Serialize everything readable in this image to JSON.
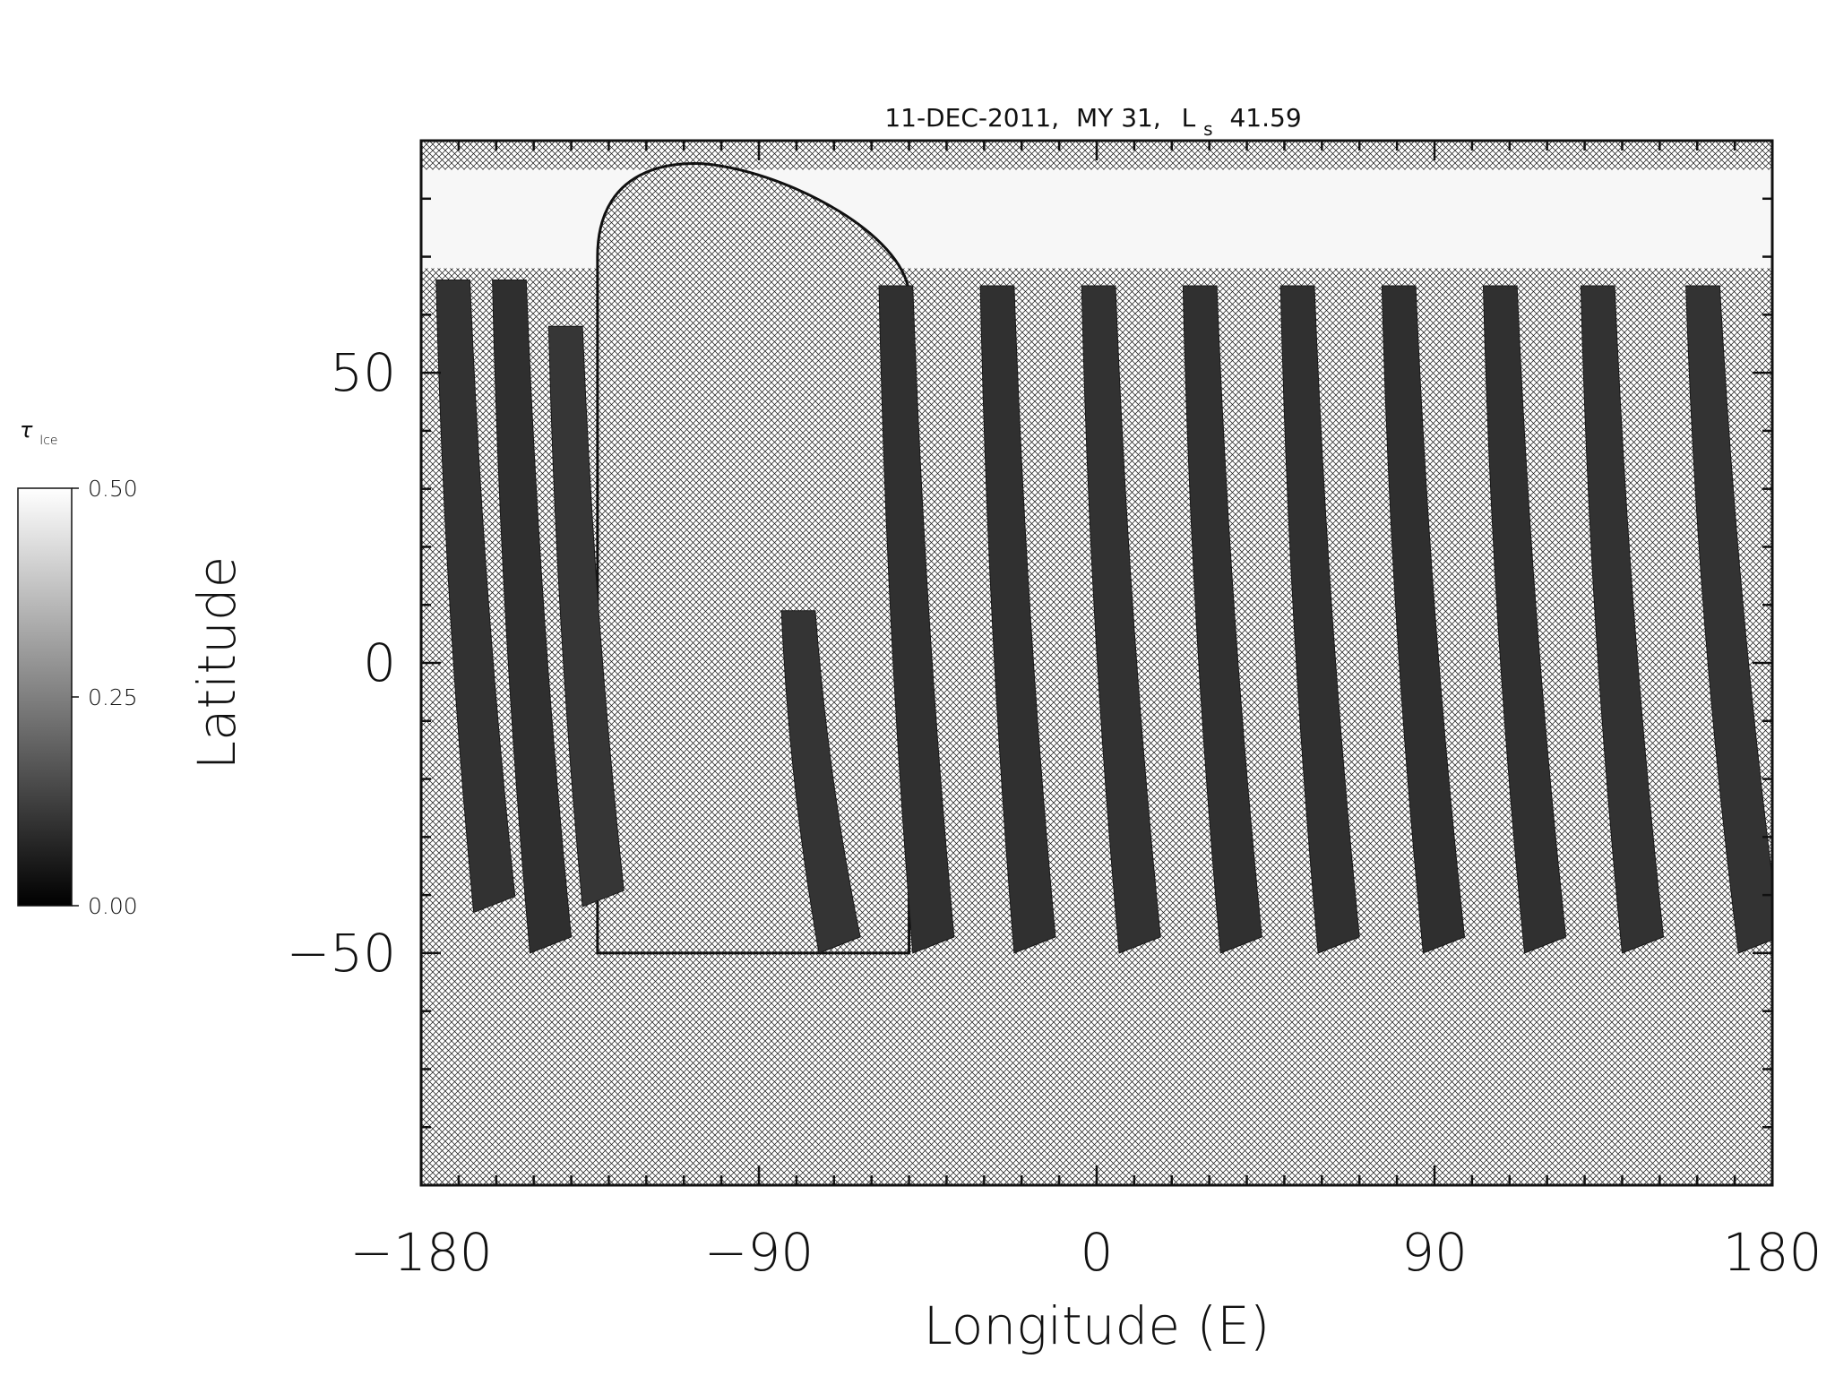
{
  "chart_data": {
    "type": "heatmap",
    "title": {
      "date": "11-DEC-2011,",
      "mars_year": "MY 31,",
      "ls_symbol": "L",
      "ls_subscript": "s",
      "ls_value": "41.59"
    },
    "xlabel": "Longitude (E)",
    "ylabel": "Latitude",
    "xlim": [
      -180,
      180
    ],
    "ylim": [
      -90,
      90
    ],
    "x_ticks": [
      -180,
      -90,
      0,
      90,
      180
    ],
    "y_ticks": [
      50,
      0,
      -50
    ],
    "x_tick_labels": [
      "−180",
      "−90",
      "0",
      "90",
      "180"
    ],
    "y_tick_labels": [
      "50",
      "0",
      "−50"
    ],
    "minor_x_step": 10,
    "minor_y_step": 10,
    "no_data": "crosshatch",
    "polar_cap": {
      "lat_min": 68,
      "lat_max": 85,
      "value": 0.5
    },
    "colorbar": {
      "label_symbol": "τ",
      "label_subscript": "Ice",
      "min": 0.0,
      "max": 0.5,
      "ticks": [
        "0.50",
        "0.25",
        "0.00"
      ],
      "tick_values": [
        0.5,
        0.25,
        0.0
      ],
      "colormap": "grayscale"
    },
    "swaths": [
      {
        "lon_top": -176,
        "lon_bottom": -166,
        "lat_top": 66,
        "lat_bottom": -43,
        "mean_value": 0.08
      },
      {
        "lon_top": -161,
        "lon_bottom": -151,
        "lat_top": 66,
        "lat_bottom": -50,
        "mean_value": 0.06
      },
      {
        "lon_top": -146,
        "lon_bottom": -137,
        "lat_top": 58,
        "lat_bottom": -42,
        "mean_value": 0.12
      },
      {
        "lon_top": -84,
        "lon_bottom": -74,
        "lat_top": 9,
        "lat_bottom": -50,
        "mean_value": 0.1
      },
      {
        "lon_top": -58,
        "lon_bottom": -49,
        "lat_top": 65,
        "lat_bottom": -50,
        "mean_value": 0.07
      },
      {
        "lon_top": -31,
        "lon_bottom": -22,
        "lat_top": 65,
        "lat_bottom": -50,
        "mean_value": 0.07
      },
      {
        "lon_top": -4,
        "lon_bottom": 6,
        "lat_top": 65,
        "lat_bottom": -50,
        "mean_value": 0.08
      },
      {
        "lon_top": 23,
        "lon_bottom": 33,
        "lat_top": 65,
        "lat_bottom": -50,
        "mean_value": 0.07
      },
      {
        "lon_top": 49,
        "lon_bottom": 59,
        "lat_top": 65,
        "lat_bottom": -50,
        "mean_value": 0.07
      },
      {
        "lon_top": 76,
        "lon_bottom": 87,
        "lat_top": 65,
        "lat_bottom": -50,
        "mean_value": 0.06
      },
      {
        "lon_top": 103,
        "lon_bottom": 114,
        "lat_top": 65,
        "lat_bottom": -50,
        "mean_value": 0.07
      },
      {
        "lon_top": 129,
        "lon_bottom": 140,
        "lat_top": 65,
        "lat_bottom": -50,
        "mean_value": 0.08
      },
      {
        "lon_top": 157,
        "lon_bottom": 171,
        "lat_top": 65,
        "lat_bottom": -50,
        "mean_value": 0.09
      }
    ]
  }
}
